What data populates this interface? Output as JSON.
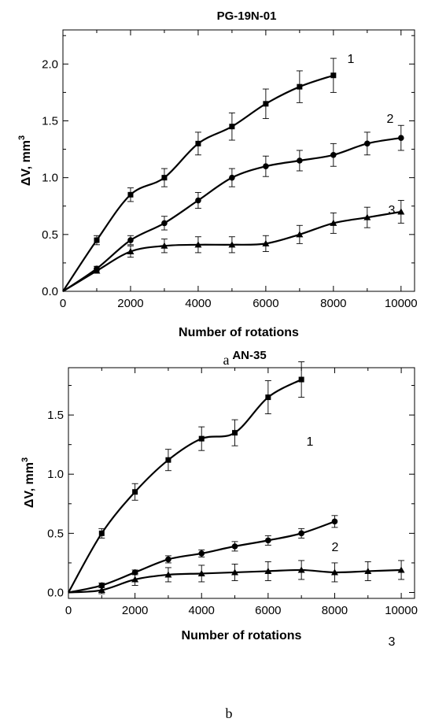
{
  "chart_data": [
    {
      "type": "line",
      "title": "PG-19N-01",
      "xlabel": "Number of rotations",
      "ylabel": "ΔV, mm",
      "ylabel_sup": "3",
      "caption": "a",
      "xlim": [
        0,
        10400
      ],
      "ylim": [
        0,
        2.3
      ],
      "xticks": [
        0,
        2000,
        4000,
        6000,
        8000,
        10000
      ],
      "yticks": [
        0.0,
        0.5,
        1.0,
        1.5,
        2.0
      ],
      "ytick_labels": [
        "0.0",
        "0.5",
        "1.0",
        "1.5",
        "2.0"
      ],
      "grid": false,
      "series": [
        {
          "name": "1",
          "marker": "square",
          "x": [
            0,
            1000,
            2000,
            3000,
            4000,
            5000,
            6000,
            7000,
            8000
          ],
          "y": [
            0,
            0.45,
            0.85,
            1.0,
            1.3,
            1.45,
            1.65,
            1.8,
            1.9
          ],
          "err": [
            0,
            0.04,
            0.06,
            0.08,
            0.1,
            0.12,
            0.13,
            0.14,
            0.15
          ]
        },
        {
          "name": "2",
          "marker": "circle",
          "x": [
            0,
            1000,
            2000,
            3000,
            4000,
            5000,
            6000,
            7000,
            8000,
            9000,
            10000
          ],
          "y": [
            0,
            0.2,
            0.45,
            0.6,
            0.8,
            1.0,
            1.1,
            1.15,
            1.2,
            1.3,
            1.35
          ],
          "err": [
            0,
            0.02,
            0.04,
            0.06,
            0.07,
            0.08,
            0.09,
            0.09,
            0.1,
            0.1,
            0.11
          ]
        },
        {
          "name": "3",
          "marker": "triangle",
          "x": [
            0,
            1000,
            2000,
            3000,
            4000,
            5000,
            6000,
            7000,
            8000,
            9000,
            10000
          ],
          "y": [
            0,
            0.18,
            0.35,
            0.4,
            0.41,
            0.41,
            0.42,
            0.5,
            0.6,
            0.65,
            0.7
          ],
          "err": [
            0,
            0.02,
            0.05,
            0.06,
            0.07,
            0.07,
            0.07,
            0.08,
            0.09,
            0.09,
            0.1
          ]
        }
      ]
    },
    {
      "type": "line",
      "title": "AN-35",
      "xlabel": "Number of rotations",
      "ylabel": "ΔV, mm",
      "ylabel_sup": "3",
      "caption": "b",
      "xlim": [
        0,
        10400
      ],
      "ylim": [
        -0.05,
        1.9
      ],
      "xticks": [
        0,
        2000,
        4000,
        6000,
        8000,
        10000
      ],
      "yticks": [
        0.0,
        0.5,
        1.0,
        1.5
      ],
      "ytick_labels": [
        "0.0",
        "0.5",
        "1.0",
        "1.5"
      ],
      "grid": false,
      "series": [
        {
          "name": "1",
          "marker": "square",
          "x": [
            0,
            1000,
            2000,
            3000,
            4000,
            5000,
            6000,
            7000
          ],
          "y": [
            0,
            0.5,
            0.85,
            1.12,
            1.3,
            1.35,
            1.65,
            1.8
          ],
          "err": [
            0,
            0.04,
            0.07,
            0.09,
            0.1,
            0.11,
            0.14,
            0.15
          ]
        },
        {
          "name": "2",
          "marker": "circle",
          "x": [
            0,
            1000,
            2000,
            3000,
            4000,
            5000,
            6000,
            7000,
            8000
          ],
          "y": [
            0,
            0.06,
            0.17,
            0.28,
            0.33,
            0.39,
            0.44,
            0.5,
            0.6
          ],
          "err": [
            0,
            0.02,
            0.02,
            0.03,
            0.03,
            0.04,
            0.04,
            0.04,
            0.05
          ]
        },
        {
          "name": "3",
          "marker": "triangle",
          "x": [
            0,
            1000,
            2000,
            3000,
            4000,
            5000,
            6000,
            7000,
            8000,
            9000,
            10000
          ],
          "y": [
            0,
            0.02,
            0.11,
            0.15,
            0.16,
            0.17,
            0.18,
            0.19,
            0.17,
            0.18,
            0.19
          ],
          "err": [
            0,
            0.03,
            0.05,
            0.06,
            0.07,
            0.07,
            0.08,
            0.08,
            0.08,
            0.08,
            0.08
          ]
        }
      ]
    }
  ]
}
